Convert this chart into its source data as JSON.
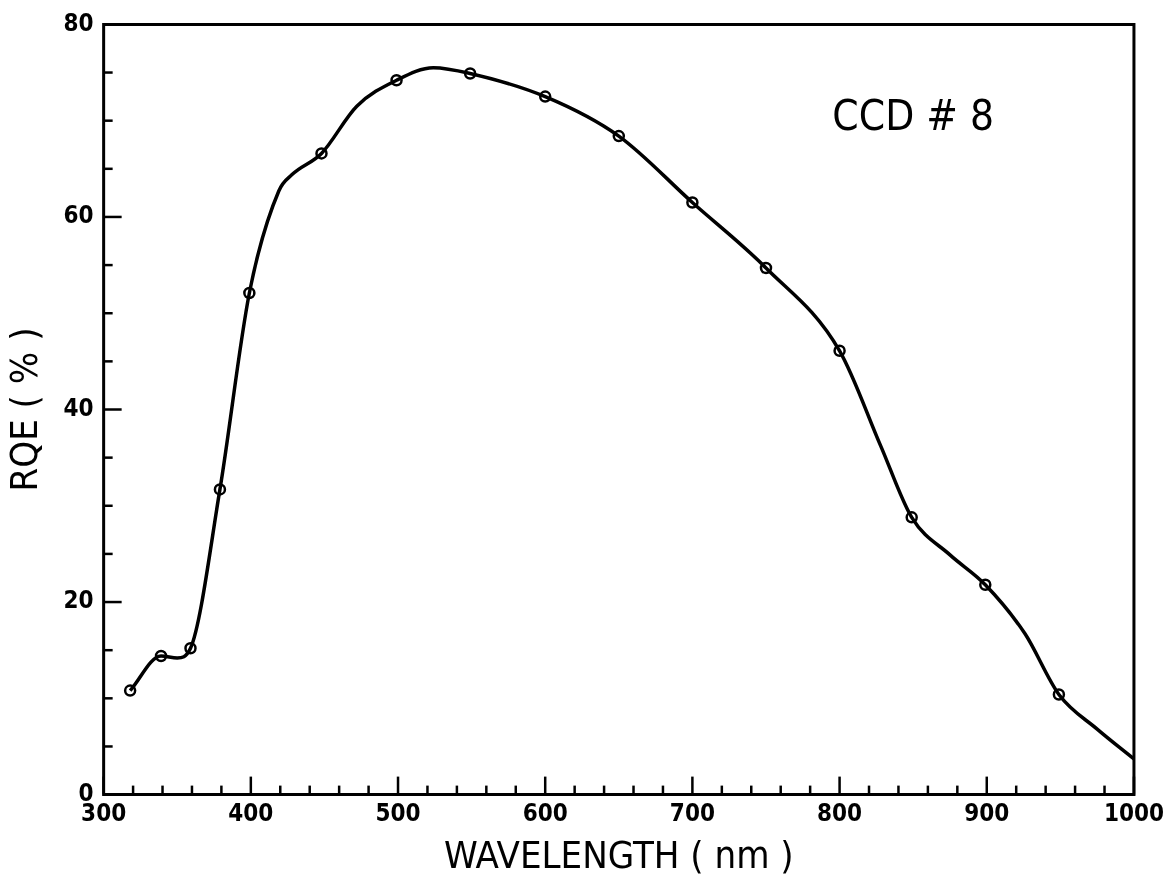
{
  "chart_data": {
    "type": "line",
    "xlabel": "WAVELENGTH ( nm )",
    "ylabel": "RQE ( % )",
    "annotations": [
      "CCD # 8"
    ],
    "xlim": [
      300,
      1000
    ],
    "ylim": [
      0,
      80
    ],
    "xticks": [
      300,
      {
        "value": 320,
        "label": null
      },
      {
        "value": 340,
        "label": null
      },
      {
        "value": 360,
        "label": null
      },
      {
        "value": 380,
        "label": null
      },
      400,
      {
        "value": 420,
        "label": null
      },
      {
        "value": 440,
        "label": null
      },
      {
        "value": 460,
        "label": null
      },
      {
        "value": 480,
        "label": null
      },
      500,
      {
        "value": 520,
        "label": null
      },
      {
        "value": 540,
        "label": null
      },
      {
        "value": 560,
        "label": null
      },
      {
        "value": 580,
        "label": null
      },
      600,
      {
        "value": 620,
        "label": null
      },
      {
        "value": 640,
        "label": null
      },
      {
        "value": 660,
        "label": null
      },
      {
        "value": 680,
        "label": null
      },
      700,
      {
        "value": 720,
        "label": null
      },
      {
        "value": 740,
        "label": null
      },
      {
        "value": 760,
        "label": null
      },
      {
        "value": 780,
        "label": null
      },
      800,
      {
        "value": 820,
        "label": null
      },
      {
        "value": 840,
        "label": null
      },
      {
        "value": 860,
        "label": null
      },
      {
        "value": 880,
        "label": null
      },
      900,
      {
        "value": 920,
        "label": null
      },
      {
        "value": 940,
        "label": null
      },
      {
        "value": 960,
        "label": null
      },
      {
        "value": 980,
        "label": null
      },
      1000
    ],
    "yticks": [
      0,
      {
        "value": 5,
        "label": null
      },
      {
        "value": 10,
        "label": null
      },
      {
        "value": 15,
        "label": null
      },
      20,
      {
        "value": 25,
        "label": null
      },
      {
        "value": 30,
        "label": null
      },
      {
        "value": 35,
        "label": null
      },
      40,
      {
        "value": 45,
        "label": null
      },
      {
        "value": 50,
        "label": null
      },
      {
        "value": 55,
        "label": null
      },
      60,
      {
        "value": 65,
        "label": null
      },
      {
        "value": 70,
        "label": null
      },
      {
        "value": 75,
        "label": null
      },
      80
    ],
    "grid": false,
    "legend": false,
    "series": [
      {
        "type": "line",
        "color": "#000000",
        "marker": "none",
        "x": [
          318,
          339,
          350,
          359,
          379,
          399,
          419,
          428,
          448,
          472,
          499,
          524,
          549,
          600,
          650,
          700,
          750,
          800,
          828,
          849,
          875,
          899,
          926,
          949,
          975,
          1000
        ],
        "values": [
          10.8,
          14.4,
          14.2,
          15.2,
          31.7,
          52.1,
          62.7,
          64.4,
          66.6,
          71.5,
          74.2,
          75.5,
          74.9,
          72.5,
          68.4,
          61.5,
          54.7,
          46.1,
          36.2,
          28.8,
          24.9,
          21.8,
          16.7,
          10.4,
          6.8,
          3.7
        ]
      },
      {
        "type": "scatter",
        "color": "#000000",
        "marker": "circle",
        "x": [
          318,
          339,
          359,
          379,
          399,
          448,
          499,
          549,
          600,
          650,
          700,
          750,
          800,
          849,
          899,
          949
        ],
        "values": [
          10.8,
          14.4,
          15.2,
          31.7,
          52.1,
          66.6,
          74.2,
          74.9,
          72.5,
          68.4,
          61.5,
          54.7,
          46.1,
          28.8,
          21.8,
          10.4
        ]
      }
    ]
  }
}
